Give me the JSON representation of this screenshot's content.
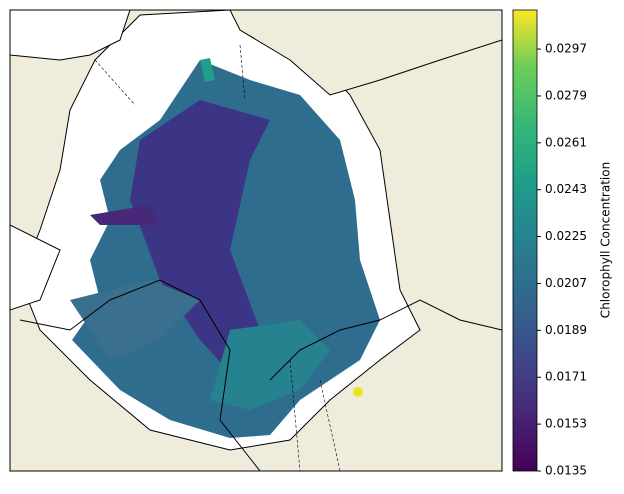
{
  "colorbar": {
    "label": "Chlorophyll Concentration",
    "lim": [
      0.0135,
      0.0312
    ],
    "ticks": [
      0.0135,
      0.0153,
      0.0171,
      0.0189,
      0.0207,
      0.0225,
      0.0243,
      0.0261,
      0.0279,
      0.0297
    ]
  }
}
